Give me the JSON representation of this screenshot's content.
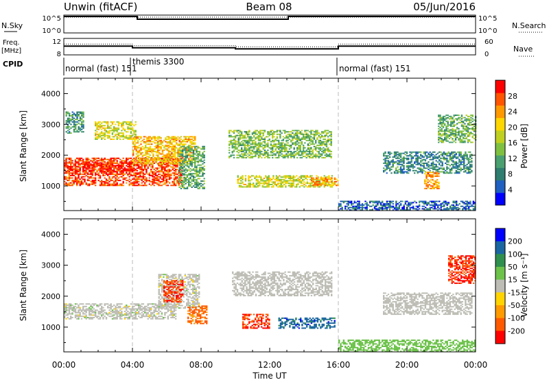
{
  "header": {
    "station": "Unwin (fitACF)",
    "beam": "Beam 08",
    "date": "05/Jun/2016"
  },
  "strip": {
    "nsky_label": "N.Sky",
    "nsky_ticks": [
      "10^5",
      "10^0"
    ],
    "nsearch_label": "N.Search",
    "nsearch_ticks": [
      "10^5",
      "10^0"
    ],
    "freq_label": "Freq.",
    "freq_unit": "[MHz]",
    "freq_ticks": [
      "12",
      "8"
    ],
    "nave_label": "Nave",
    "nave_ticks": [
      "60",
      "0"
    ],
    "cpid_label": "CPID",
    "cpid_segments": [
      {
        "start_h": 0,
        "end_h": 4,
        "label": "normal (fast) 151"
      },
      {
        "start_h": 4,
        "end_h": 16,
        "label": "themis 3300"
      },
      {
        "start_h": 16,
        "end_h": 24,
        "label": "normal (fast) 151"
      }
    ],
    "freq_steps": [
      {
        "start_h": 0,
        "end_h": 4,
        "mhz": 11.2
      },
      {
        "start_h": 4,
        "end_h": 10,
        "mhz": 10.6
      },
      {
        "start_h": 10,
        "end_h": 16,
        "mhz": 10.2
      },
      {
        "start_h": 16,
        "end_h": 24,
        "mhz": 11.2
      }
    ]
  },
  "chart_data": [
    {
      "type": "heatmap",
      "quantity": "power",
      "ylabel": "Slant Range [km]",
      "xlabel": "",
      "x_ticks": [
        "00:00",
        "04:00",
        "08:00",
        "12:00",
        "16:00",
        "20:00",
        "00:00"
      ],
      "xlim_h": [
        0,
        24
      ],
      "y_ticks": [
        1000,
        2000,
        3000,
        4000
      ],
      "ylim": [
        200,
        4500
      ],
      "colorbar": {
        "label": "Power [dB]",
        "ticks": [
          4,
          8,
          12,
          16,
          20,
          24,
          28
        ],
        "range": [
          0,
          32
        ]
      },
      "echo_regions": [
        {
          "h0": 0.0,
          "h1": 6.9,
          "r0": 1000,
          "r1": 1900,
          "dB": 28
        },
        {
          "h0": 0.0,
          "h1": 3.9,
          "r0": 1450,
          "r1": 1750,
          "dB": 30
        },
        {
          "h0": 4.0,
          "h1": 7.6,
          "r0": 1700,
          "r1": 2600,
          "dB": 22
        },
        {
          "h0": 0.1,
          "h1": 1.1,
          "r0": 2700,
          "r1": 3400,
          "dB": 10
        },
        {
          "h0": 1.8,
          "h1": 4.2,
          "r0": 2500,
          "r1": 3100,
          "dB": 18
        },
        {
          "h0": 6.7,
          "h1": 8.2,
          "r0": 900,
          "r1": 2300,
          "dB": 12
        },
        {
          "h0": 9.6,
          "h1": 15.6,
          "r0": 1900,
          "r1": 2800,
          "dB": 14
        },
        {
          "h0": 10.1,
          "h1": 15.6,
          "r0": 950,
          "r1": 1350,
          "dB": 18
        },
        {
          "h0": 14.4,
          "h1": 16.0,
          "r0": 1000,
          "r1": 1250,
          "dB": 24
        },
        {
          "h0": 18.6,
          "h1": 23.8,
          "r0": 1400,
          "r1": 2100,
          "dB": 9
        },
        {
          "h0": 21.8,
          "h1": 24.0,
          "r0": 2400,
          "r1": 3300,
          "dB": 13
        },
        {
          "h0": 21.0,
          "h1": 21.9,
          "r0": 900,
          "r1": 1450,
          "dB": 24
        },
        {
          "h0": 16.0,
          "h1": 24.0,
          "r0": 200,
          "r1": 500,
          "dB": 6
        }
      ]
    },
    {
      "type": "heatmap",
      "quantity": "velocity",
      "ylabel": "Slant Range [km]",
      "xlabel": "Time UT",
      "x_ticks": [
        "00:00",
        "04:00",
        "08:00",
        "12:00",
        "16:00",
        "20:00",
        "00:00"
      ],
      "xlim_h": [
        0,
        24
      ],
      "y_ticks": [
        1000,
        2000,
        3000,
        4000
      ],
      "ylim": [
        200,
        4500
      ],
      "colorbar": {
        "label": "Velocity [m s⁻¹]",
        "ticks": [
          200,
          100,
          50,
          15,
          -15,
          -50,
          -100,
          -200
        ]
      },
      "echo_regions": [
        {
          "h0": 0.0,
          "h1": 6.5,
          "r0": 1250,
          "r1": 1750,
          "v": 0
        },
        {
          "h0": 5.5,
          "h1": 7.9,
          "r0": 1600,
          "r1": 2700,
          "v": 0
        },
        {
          "h0": 5.8,
          "h1": 6.9,
          "r0": 1800,
          "r1": 2500,
          "v": -200
        },
        {
          "h0": 7.2,
          "h1": 8.3,
          "r0": 1100,
          "r1": 1700,
          "v": -120
        },
        {
          "h0": 9.8,
          "h1": 15.6,
          "r0": 2000,
          "r1": 2800,
          "v": 5
        },
        {
          "h0": 10.4,
          "h1": 12.0,
          "r0": 950,
          "r1": 1400,
          "v": -200
        },
        {
          "h0": 12.5,
          "h1": 15.8,
          "r0": 950,
          "r1": 1300,
          "v": 150
        },
        {
          "h0": 22.4,
          "h1": 24.0,
          "r0": 2400,
          "r1": 3300,
          "v": -200
        },
        {
          "h0": 18.6,
          "h1": 23.8,
          "r0": 1400,
          "r1": 2100,
          "v": -10
        },
        {
          "h0": 16.0,
          "h1": 24.0,
          "r0": 200,
          "r1": 600,
          "v": 30
        }
      ]
    }
  ],
  "colors": {
    "power_scale": [
      "#0000ff",
      "#2060c0",
      "#2e7d6f",
      "#4aa070",
      "#7fc040",
      "#c0d020",
      "#ffd700",
      "#ff9900",
      "#ff5500",
      "#ff0000"
    ],
    "velocity_scale": [
      "#0000ff",
      "#1a66a0",
      "#2f8f4e",
      "#6cc24a",
      "#bdbdb5",
      "#ffd400",
      "#ff9a00",
      "#ff5a00",
      "#ff0000"
    ],
    "ground_scatter": "#bdbdb5"
  }
}
